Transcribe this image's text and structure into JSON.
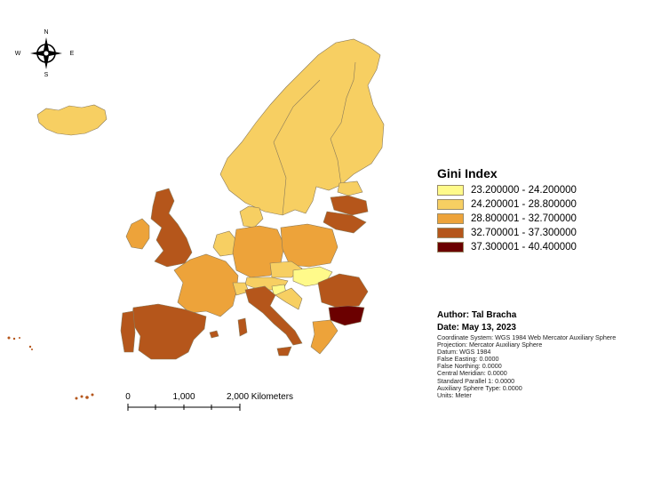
{
  "legend": {
    "title": "Gini Index",
    "classes": [
      {
        "label": "23.200000 - 24.200000",
        "color": "#fffa8a"
      },
      {
        "label": "24.200001 - 28.800000",
        "color": "#f7cf62"
      },
      {
        "label": "28.800001 - 32.700000",
        "color": "#eda33a"
      },
      {
        "label": "32.700001 - 37.300000",
        "color": "#b5561b"
      },
      {
        "label": "37.300001 - 40.400000",
        "color": "#6b0000"
      }
    ]
  },
  "author": "Author: Tal Bracha",
  "date": "Date: May 13, 2023",
  "metadata": [
    "Coordinate System: WGS 1984 Web Mercator Auxiliary Sphere",
    "Projection: Mercator Auxiliary Sphere",
    "Datum: WGS 1984",
    "False Easting: 0.0000",
    "False Northing: 0.0000",
    "Central Meridian: 0.0000",
    "Standard Parallel 1: 0.0000",
    "Auxiliary Sphere Type: 0.0000",
    "Units: Meter"
  ],
  "scale_bar": {
    "labels": [
      "0",
      "1,000",
      "2,000 Kilometers"
    ]
  },
  "north_arrow": {
    "n": "N",
    "s": "S",
    "e": "E",
    "w": "W",
    "icon": "compass-rose-icon"
  }
}
